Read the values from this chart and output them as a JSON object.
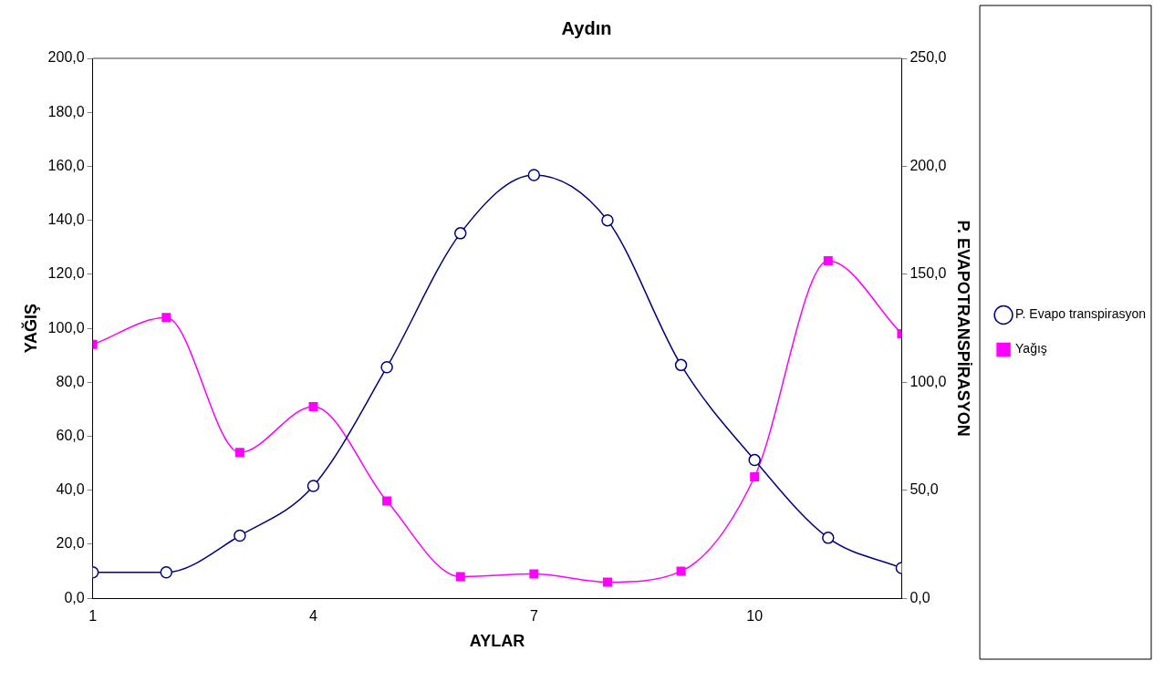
{
  "chart_data": {
    "type": "line",
    "title": "Aydın",
    "xlabel": "AYLAR",
    "ylabel": "YAĞIŞ",
    "y2label": "P. EVAPOTRANSPİRASYON",
    "x": [
      1,
      2,
      3,
      4,
      5,
      6,
      7,
      8,
      9,
      10,
      11,
      12
    ],
    "xlim": [
      1,
      12
    ],
    "xticks": [
      1,
      4,
      7,
      10
    ],
    "ylim": [
      0,
      200
    ],
    "yticks": [
      {
        "value": 0,
        "label": "0,0"
      },
      {
        "value": 20,
        "label": "20,0"
      },
      {
        "value": 40,
        "label": "40,0"
      },
      {
        "value": 60,
        "label": "60,0"
      },
      {
        "value": 80,
        "label": "80,0"
      },
      {
        "value": 100,
        "label": "100,0"
      },
      {
        "value": 120,
        "label": "120,0"
      },
      {
        "value": 140,
        "label": "140,0"
      },
      {
        "value": 160,
        "label": "160,0"
      },
      {
        "value": 180,
        "label": "180,0"
      },
      {
        "value": 200,
        "label": "200,0"
      }
    ],
    "y2lim": [
      0,
      250
    ],
    "y2ticks": [
      {
        "value": 0,
        "label": "0,0"
      },
      {
        "value": 50,
        "label": "50,0"
      },
      {
        "value": 100,
        "label": "100,0"
      },
      {
        "value": 150,
        "label": "150,0"
      },
      {
        "value": 200,
        "label": "200,0"
      },
      {
        "value": 250,
        "label": "250,0"
      }
    ],
    "series": [
      {
        "name": "P. Evapo transpirasyon",
        "color": "#000080",
        "axis": "y2",
        "marker": "circle",
        "values": [
          12,
          12,
          29,
          52,
          107,
          169,
          196,
          175,
          108,
          64,
          28,
          14
        ]
      },
      {
        "name": "Yağış",
        "color": "#ff00ff",
        "marker": "square",
        "values": [
          94,
          104,
          54,
          71,
          36,
          8,
          9,
          6,
          10,
          45,
          125,
          98
        ]
      }
    ],
    "grid": false,
    "legend": "right"
  }
}
